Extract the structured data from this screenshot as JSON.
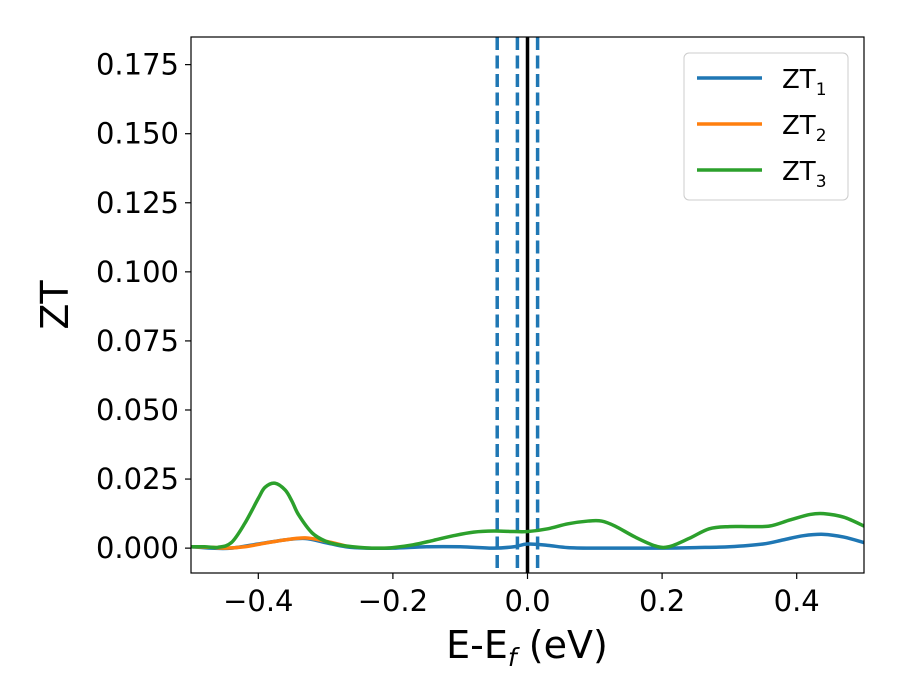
{
  "chart_data": {
    "type": "line",
    "xlabel_main": "E-E",
    "xlabel_sub": "f",
    "xlabel_unit": " (eV)",
    "ylabel": "ZT",
    "xlim": [
      -0.5,
      0.5
    ],
    "ylim": [
      -0.009,
      0.185
    ],
    "xticks": [
      -0.4,
      -0.2,
      0.0,
      0.2,
      0.4
    ],
    "xtick_labels": [
      "−0.4",
      "−0.2",
      "0.0",
      "0.2",
      "0.4"
    ],
    "yticks": [
      0.0,
      0.025,
      0.05,
      0.075,
      0.1,
      0.125,
      0.15,
      0.175
    ],
    "ytick_labels": [
      "0.000",
      "0.025",
      "0.050",
      "0.075",
      "0.100",
      "0.125",
      "0.150",
      "0.175"
    ],
    "grid": false,
    "legend_position": "top-right",
    "vertical_lines": [
      {
        "x": -0.045,
        "style": "dashed",
        "color": "#1f77b4"
      },
      {
        "x": -0.015,
        "style": "dashed",
        "color": "#1f77b4"
      },
      {
        "x": 0.0,
        "style": "solid",
        "color": "#000000"
      },
      {
        "x": 0.015,
        "style": "dashed",
        "color": "#1f77b4"
      }
    ],
    "series": [
      {
        "name": "ZT",
        "sub": "1",
        "color": "#1f77b4",
        "x": [
          -0.5,
          -0.47,
          -0.44,
          -0.4,
          -0.36,
          -0.33,
          -0.3,
          -0.27,
          -0.24,
          -0.2,
          -0.15,
          -0.1,
          -0.05,
          -0.02,
          0.0,
          0.03,
          0.06,
          0.1,
          0.15,
          0.2,
          0.25,
          0.3,
          0.35,
          0.38,
          0.41,
          0.44,
          0.47,
          0.5
        ],
        "y": [
          0.0005,
          0.0,
          0.0,
          0.0015,
          0.003,
          0.0035,
          0.002,
          0.0005,
          0.0,
          0.0,
          0.0005,
          0.0005,
          0.0,
          0.0005,
          0.0015,
          0.001,
          0.0002,
          0.0,
          0.0,
          0.0,
          0.0002,
          0.0005,
          0.0015,
          0.003,
          0.0045,
          0.005,
          0.004,
          0.002
        ]
      },
      {
        "name": "ZT",
        "sub": "2",
        "color": "#ff7f0e",
        "x": [
          -0.5,
          -0.47,
          -0.45,
          -0.42,
          -0.39,
          -0.36,
          -0.33,
          -0.3,
          -0.27
        ],
        "y": [
          0.0005,
          0.0003,
          0.0,
          0.0005,
          0.0018,
          0.003,
          0.0037,
          0.0025,
          0.0008
        ]
      },
      {
        "name": "ZT",
        "sub": "3",
        "color": "#2ca02c",
        "x": [
          -0.5,
          -0.48,
          -0.46,
          -0.44,
          -0.42,
          -0.4,
          -0.39,
          -0.375,
          -0.36,
          -0.35,
          -0.34,
          -0.32,
          -0.3,
          -0.28,
          -0.26,
          -0.24,
          -0.22,
          -0.2,
          -0.17,
          -0.14,
          -0.11,
          -0.08,
          -0.05,
          -0.02,
          0.0,
          0.03,
          0.06,
          0.09,
          0.11,
          0.13,
          0.16,
          0.19,
          0.21,
          0.24,
          0.27,
          0.3,
          0.33,
          0.36,
          0.39,
          0.42,
          0.44,
          0.47,
          0.5
        ],
        "y": [
          0.0005,
          0.0005,
          0.0003,
          0.002,
          0.009,
          0.018,
          0.022,
          0.0235,
          0.021,
          0.017,
          0.012,
          0.0055,
          0.0025,
          0.0012,
          0.0005,
          0.0001,
          0.0,
          0.0002,
          0.0012,
          0.0028,
          0.0045,
          0.0058,
          0.0062,
          0.006,
          0.006,
          0.007,
          0.0088,
          0.0098,
          0.0098,
          0.008,
          0.004,
          0.0008,
          0.0005,
          0.0035,
          0.007,
          0.0078,
          0.0078,
          0.008,
          0.0102,
          0.0122,
          0.0125,
          0.0112,
          0.008
        ]
      }
    ]
  }
}
